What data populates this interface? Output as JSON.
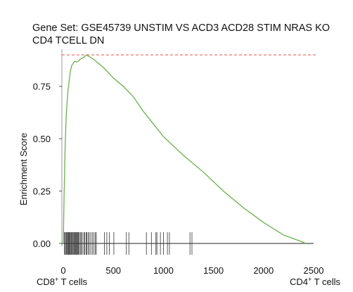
{
  "chart_data": {
    "type": "line",
    "title_line1": "Gene Set: GSE45739 UNSTIM VS ACD3 ACD28 STIM NRAS KO",
    "title_line2": "CD4 TCELL DN",
    "ylabel": "Enrichment Score",
    "xlabel_left_main": "CD8",
    "xlabel_left_sup": "+",
    "xlabel_left_rest": " T cells",
    "xlabel_right_main": "CD4",
    "xlabel_right_sup": "+",
    "xlabel_right_rest": " T cells",
    "xlim": [
      0,
      2500
    ],
    "ylim": [
      0,
      0.9
    ],
    "x_ticks": [
      0,
      500,
      1000,
      1500,
      2000,
      2500
    ],
    "y_ticks": [
      0.0,
      0.25,
      0.5,
      0.75
    ],
    "y_tick_labels": [
      "0.00",
      "0.25",
      "0.50",
      "0.75"
    ],
    "max_es": 0.9,
    "series": [
      {
        "color": "#6ab04c",
        "x": [
          0,
          8,
          18,
          30,
          45,
          55,
          70,
          85,
          100,
          115,
          130,
          150,
          170,
          190,
          210,
          230,
          250,
          300,
          400,
          500,
          600,
          700,
          800,
          900,
          1000,
          1200,
          1400,
          1600,
          1800,
          2000,
          2200,
          2400,
          2415
        ],
        "y": [
          0.0,
          0.22,
          0.46,
          0.62,
          0.72,
          0.76,
          0.82,
          0.85,
          0.86,
          0.87,
          0.865,
          0.87,
          0.88,
          0.885,
          0.89,
          0.9,
          0.895,
          0.88,
          0.84,
          0.79,
          0.75,
          0.7,
          0.63,
          0.57,
          0.51,
          0.42,
          0.34,
          0.25,
          0.17,
          0.1,
          0.04,
          0.005,
          0.0
        ]
      }
    ],
    "hits": [
      10,
      20,
      28,
      35,
      42,
      50,
      56,
      63,
      70,
      78,
      85,
      92,
      100,
      108,
      115,
      122,
      130,
      138,
      145,
      150,
      158,
      170,
      178,
      190,
      205,
      215,
      228,
      236,
      248,
      260,
      275,
      290,
      305,
      320,
      330,
      410,
      435,
      460,
      505,
      630,
      655,
      830,
      880,
      925,
      935,
      970,
      1000,
      1040,
      1060,
      1265,
      1285
    ]
  }
}
